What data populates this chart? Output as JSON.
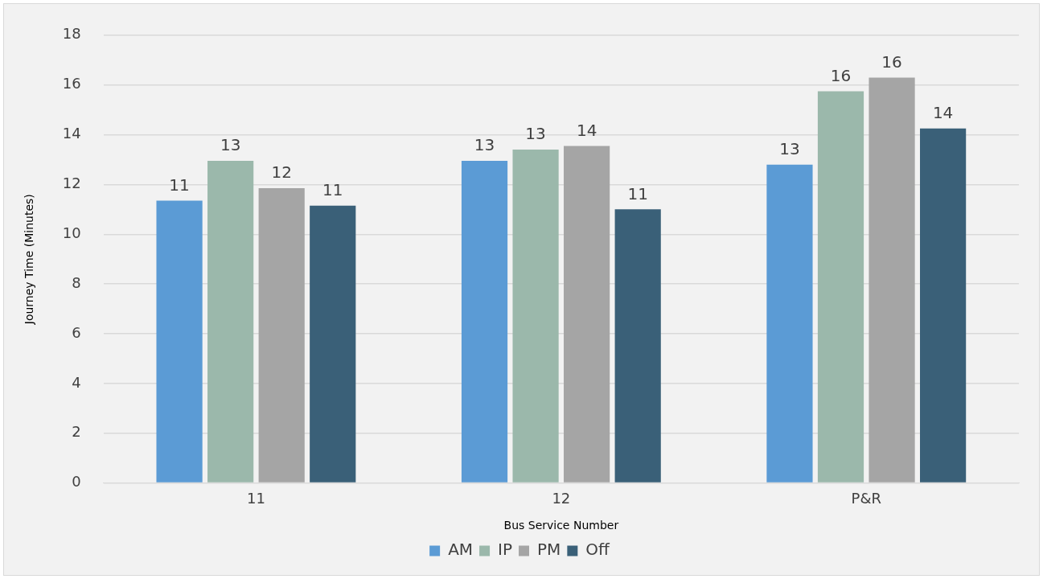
{
  "chart_data": {
    "type": "bar",
    "xlabel": "Bus Service Number",
    "ylabel": "Journey Time (Minutes)",
    "categories": [
      "11",
      "12",
      "P&R"
    ],
    "series": [
      {
        "name": "AM",
        "color": "#5b9bd5",
        "values": [
          11.35,
          12.95,
          12.8
        ],
        "value_labels": [
          "11",
          "13",
          "13"
        ]
      },
      {
        "name": "IP",
        "color": "#9bb8ab",
        "values": [
          12.95,
          13.4,
          15.75
        ],
        "value_labels": [
          "13",
          "13",
          "16"
        ]
      },
      {
        "name": "PM",
        "color": "#a5a5a5",
        "values": [
          11.85,
          13.55,
          16.3
        ],
        "value_labels": [
          "12",
          "14",
          "16"
        ]
      },
      {
        "name": "Off",
        "color": "#3a6078",
        "values": [
          11.15,
          11.0,
          14.25
        ],
        "value_labels": [
          "11",
          "11",
          "14"
        ]
      }
    ],
    "ylim": [
      0,
      18
    ],
    "yticks": [
      0,
      2,
      4,
      6,
      8,
      10,
      12,
      14,
      16,
      18
    ],
    "grid": "y",
    "legend": "bottom"
  }
}
